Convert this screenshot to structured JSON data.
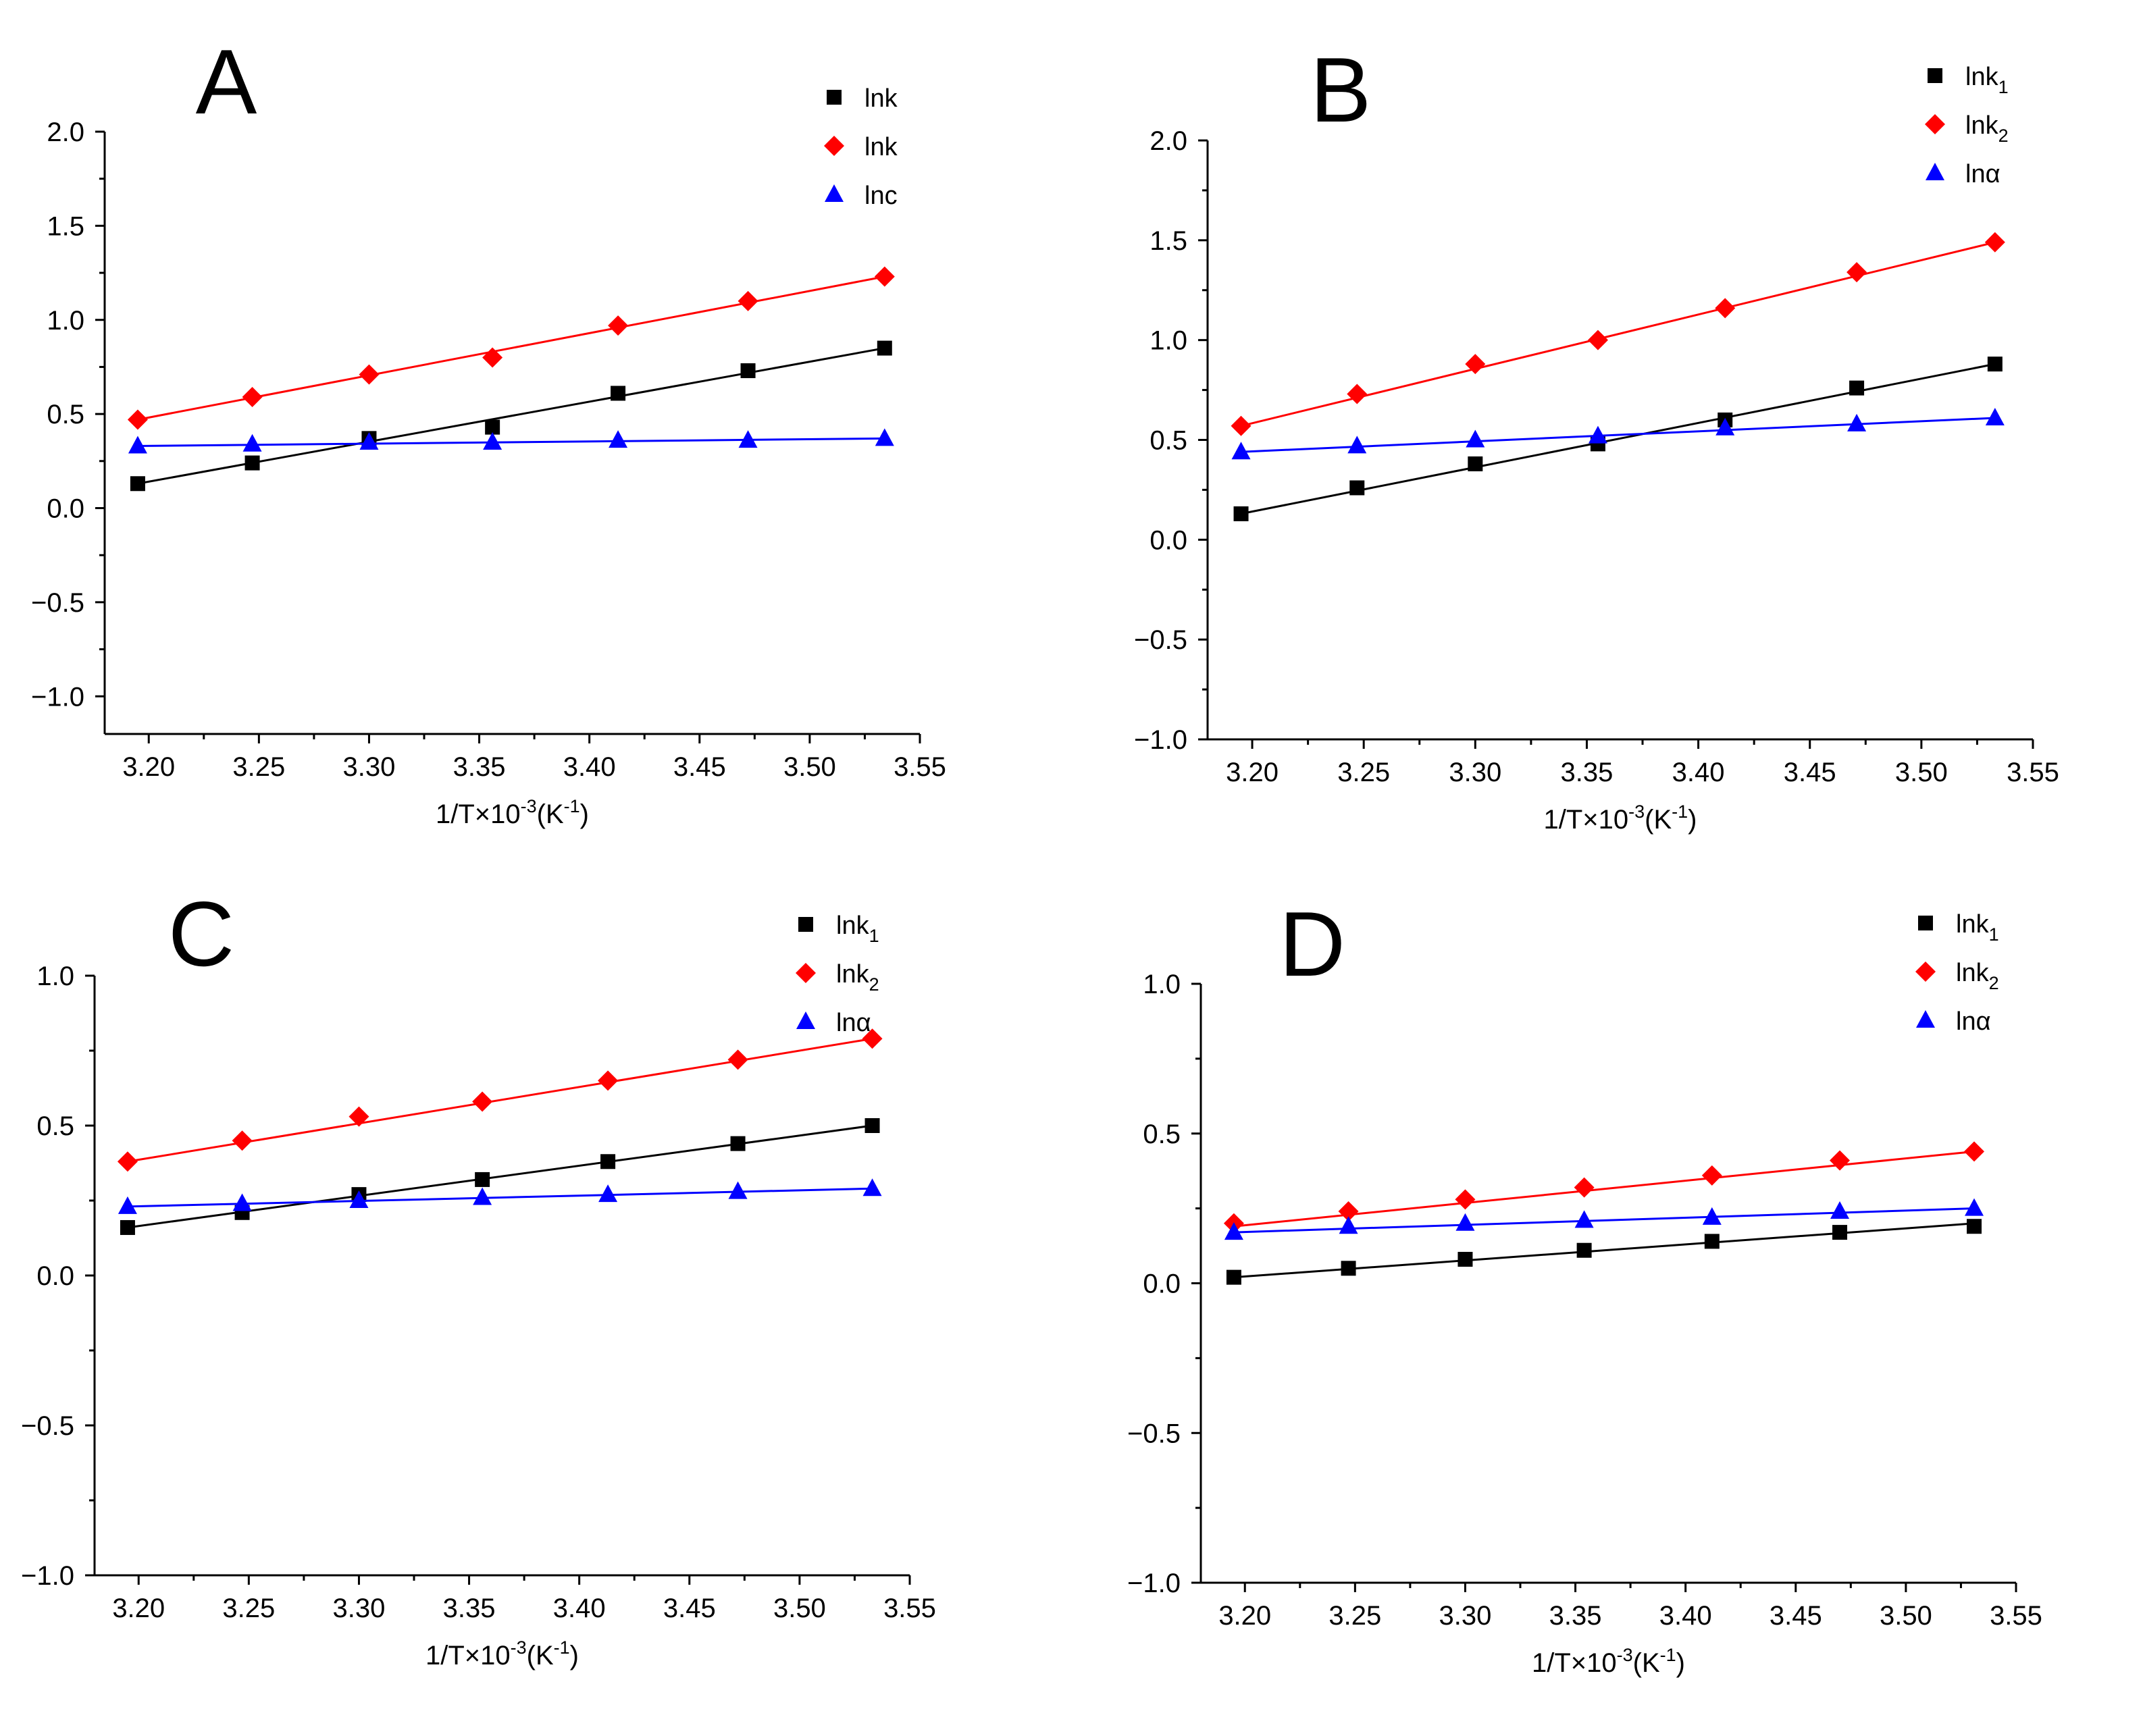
{
  "colors": {
    "lnk1": "#000000",
    "lnk2": "#ff0000",
    "lna": "#0000ff",
    "axis": "#000000"
  },
  "chart_data": [
    {
      "panel": "A",
      "type": "scatter",
      "xlabel": {
        "base": "1/T×10",
        "exp": "-3",
        "unit_open": "(K",
        "unit_exp": "-1",
        "unit_close": ")"
      },
      "xlim": [
        3.18,
        3.55
      ],
      "ylim": [
        -1.2,
        2.0
      ],
      "xticks": [
        "3.20",
        "3.25",
        "3.30",
        "3.35",
        "3.40",
        "3.45",
        "3.50",
        "3.55"
      ],
      "yticks": [
        "2.0",
        "1.5",
        "1.0",
        "0.5",
        "0.0",
        "−0.5",
        "−1.0"
      ],
      "x": [
        3.195,
        3.247,
        3.3,
        3.356,
        3.413,
        3.472,
        3.534
      ],
      "series": [
        {
          "name": "lnk",
          "sub": "",
          "marker": "square",
          "color": "#000000",
          "values": [
            0.13,
            0.24,
            0.37,
            0.43,
            0.61,
            0.73,
            0.85
          ],
          "fit": [
            0.13,
            0.85
          ]
        },
        {
          "name": "lnk",
          "sub": "",
          "marker": "diamond",
          "color": "#ff0000",
          "values": [
            0.47,
            0.59,
            0.71,
            0.8,
            0.97,
            1.1,
            1.23
          ],
          "fit": [
            0.47,
            1.23
          ]
        },
        {
          "name": "lnc",
          "sub": "",
          "marker": "triangle",
          "color": "#0000ff",
          "values": [
            0.33,
            0.34,
            0.35,
            0.35,
            0.36,
            0.36,
            0.37
          ],
          "fit": [
            0.33,
            0.37
          ]
        }
      ]
    },
    {
      "panel": "B",
      "type": "scatter",
      "xlabel": {
        "base": "1/T×10",
        "exp": "-3",
        "unit_open": "(K",
        "unit_exp": "-1",
        "unit_close": ")"
      },
      "xlim": [
        3.18,
        3.55
      ],
      "ylim": [
        -1.0,
        2.0
      ],
      "xticks": [
        "3.20",
        "3.25",
        "3.30",
        "3.35",
        "3.40",
        "3.45",
        "3.50",
        "3.55"
      ],
      "yticks": [
        "2.0",
        "1.5",
        "1.0",
        "0.5",
        "0.0",
        "−0.5",
        "−1.0"
      ],
      "x": [
        3.195,
        3.247,
        3.3,
        3.355,
        3.412,
        3.471,
        3.533
      ],
      "series": [
        {
          "name": "lnk",
          "sub": "1",
          "marker": "square",
          "color": "#000000",
          "values": [
            0.13,
            0.26,
            0.38,
            0.48,
            0.6,
            0.76,
            0.88
          ],
          "fit": [
            0.13,
            0.88
          ]
        },
        {
          "name": "lnk",
          "sub": "2",
          "marker": "diamond",
          "color": "#ff0000",
          "values": [
            0.57,
            0.73,
            0.88,
            1.0,
            1.16,
            1.34,
            1.49
          ],
          "fit": [
            0.57,
            1.49
          ]
        },
        {
          "name": "lnα",
          "sub": "",
          "marker": "triangle",
          "color": "#0000ff",
          "values": [
            0.44,
            0.47,
            0.5,
            0.52,
            0.56,
            0.58,
            0.61
          ],
          "fit": [
            0.44,
            0.61
          ]
        }
      ]
    },
    {
      "panel": "C",
      "type": "scatter",
      "xlabel": {
        "base": "1/T×10",
        "exp": "-3",
        "unit_open": "(K",
        "unit_exp": "-1",
        "unit_close": ")"
      },
      "xlim": [
        3.18,
        3.55
      ],
      "ylim": [
        -1.0,
        1.0
      ],
      "xticks": [
        "3.20",
        "3.25",
        "3.30",
        "3.35",
        "3.40",
        "3.45",
        "3.50",
        "3.55"
      ],
      "yticks": [
        "1.0",
        "0.5",
        "0.0",
        "−0.5",
        "−1.0"
      ],
      "x": [
        3.195,
        3.247,
        3.3,
        3.356,
        3.413,
        3.472,
        3.533
      ],
      "series": [
        {
          "name": "lnk",
          "sub": "1",
          "marker": "square",
          "color": "#000000",
          "values": [
            0.16,
            0.21,
            0.27,
            0.32,
            0.38,
            0.44,
            0.5
          ],
          "fit": [
            0.16,
            0.5
          ]
        },
        {
          "name": "lnk",
          "sub": "2",
          "marker": "diamond",
          "color": "#ff0000",
          "values": [
            0.38,
            0.45,
            0.53,
            0.58,
            0.65,
            0.72,
            0.79
          ],
          "fit": [
            0.38,
            0.79
          ]
        },
        {
          "name": "lnα",
          "sub": "",
          "marker": "triangle",
          "color": "#0000ff",
          "values": [
            0.23,
            0.24,
            0.25,
            0.26,
            0.27,
            0.28,
            0.29
          ],
          "fit": [
            0.23,
            0.29
          ]
        }
      ]
    },
    {
      "panel": "D",
      "type": "scatter",
      "xlabel": {
        "base": "1/T×10",
        "exp": "-3",
        "unit_open": "(K",
        "unit_exp": "-1",
        "unit_close": ")"
      },
      "xlim": [
        3.18,
        3.55
      ],
      "ylim": [
        -1.0,
        1.0
      ],
      "xticks": [
        "3.20",
        "3.25",
        "3.30",
        "3.35",
        "3.40",
        "3.45",
        "3.50",
        "3.55"
      ],
      "yticks": [
        "1.0",
        "0.5",
        "0.0",
        "−0.5",
        "−1.0"
      ],
      "x": [
        3.195,
        3.247,
        3.3,
        3.354,
        3.412,
        3.47,
        3.531
      ],
      "series": [
        {
          "name": "lnk",
          "sub": "1",
          "marker": "square",
          "color": "#000000",
          "values": [
            0.02,
            0.05,
            0.08,
            0.11,
            0.14,
            0.17,
            0.19
          ],
          "fit": [
            0.02,
            0.2
          ]
        },
        {
          "name": "lnk",
          "sub": "2",
          "marker": "diamond",
          "color": "#ff0000",
          "values": [
            0.2,
            0.24,
            0.28,
            0.32,
            0.36,
            0.41,
            0.44
          ],
          "fit": [
            0.19,
            0.44
          ]
        },
        {
          "name": "lnα",
          "sub": "",
          "marker": "triangle",
          "color": "#0000ff",
          "values": [
            0.17,
            0.19,
            0.2,
            0.21,
            0.22,
            0.24,
            0.25
          ],
          "fit": [
            0.17,
            0.25
          ]
        }
      ]
    }
  ]
}
